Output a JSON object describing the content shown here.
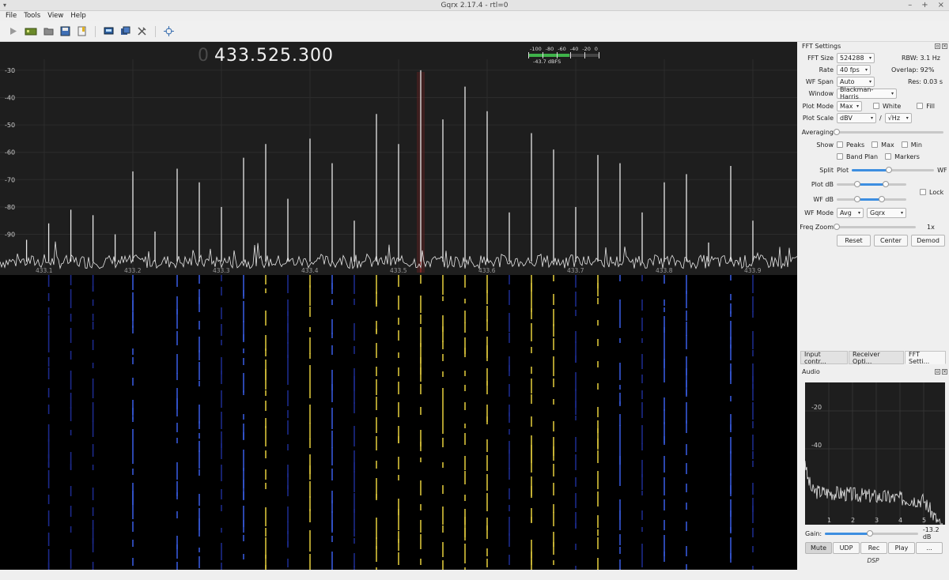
{
  "window": {
    "title": "Gqrx 2.17.4 - rtl=0",
    "controls": [
      "–",
      "+",
      "×"
    ]
  },
  "menu": [
    "File",
    "Tools",
    "View",
    "Help"
  ],
  "toolbar": {
    "buttons": [
      "play-icon",
      "device-icon",
      "open-icon",
      "save-icon",
      "bookmark-icon",
      "remote-icon",
      "dx-icon",
      "settings-icon",
      "crosshair-icon"
    ]
  },
  "frequency": {
    "leading": "0",
    "value": "433.525.300"
  },
  "signal_meter": {
    "scale": [
      "-100",
      "-80",
      "-60",
      "-40",
      "-20",
      "0"
    ],
    "level_dbfs": -43.7,
    "level_text": "-43.7 dBFS",
    "fill_fraction": 0.58,
    "color": "#3fb24a"
  },
  "chart_data": [
    {
      "type": "line",
      "name": "spectrum",
      "y_ticks": [
        "-30",
        "-40",
        "-50",
        "-60",
        "-70",
        "-80",
        "-90"
      ],
      "y_tick_values": [
        -30,
        -40,
        -50,
        -60,
        -70,
        -80,
        -90
      ],
      "x_ticks": [
        "433.1",
        "433.2",
        "433.3",
        "433.4",
        "433.5",
        "433.6",
        "433.7",
        "433.8",
        "433.9"
      ],
      "x_tick_values": [
        433.1,
        433.2,
        433.3,
        433.4,
        433.5,
        433.6,
        433.7,
        433.8,
        433.9
      ],
      "xlim": [
        433.05,
        433.95
      ],
      "ylim": [
        -104,
        -26
      ],
      "noise_floor_db": -100,
      "peaks": [
        {
          "f": 433.08,
          "db": -92
        },
        {
          "f": 433.105,
          "db": -86
        },
        {
          "f": 433.13,
          "db": -81
        },
        {
          "f": 433.155,
          "db": -83
        },
        {
          "f": 433.18,
          "db": -90
        },
        {
          "f": 433.2,
          "db": -67
        },
        {
          "f": 433.225,
          "db": -89
        },
        {
          "f": 433.25,
          "db": -66
        },
        {
          "f": 433.275,
          "db": -71
        },
        {
          "f": 433.3,
          "db": -80
        },
        {
          "f": 433.325,
          "db": -62
        },
        {
          "f": 433.35,
          "db": -57
        },
        {
          "f": 433.375,
          "db": -77
        },
        {
          "f": 433.4,
          "db": -55
        },
        {
          "f": 433.425,
          "db": -64
        },
        {
          "f": 433.45,
          "db": -85
        },
        {
          "f": 433.475,
          "db": -46
        },
        {
          "f": 433.5,
          "db": -57
        },
        {
          "f": 433.525,
          "db": -30
        },
        {
          "f": 433.55,
          "db": -48
        },
        {
          "f": 433.575,
          "db": -36
        },
        {
          "f": 433.6,
          "db": -45
        },
        {
          "f": 433.625,
          "db": -82
        },
        {
          "f": 433.65,
          "db": -53
        },
        {
          "f": 433.675,
          "db": -59
        },
        {
          "f": 433.7,
          "db": -80
        },
        {
          "f": 433.725,
          "db": -61
        },
        {
          "f": 433.75,
          "db": -64
        },
        {
          "f": 433.775,
          "db": -82
        },
        {
          "f": 433.8,
          "db": -71
        },
        {
          "f": 433.825,
          "db": -68
        },
        {
          "f": 433.85,
          "db": -93
        },
        {
          "f": 433.875,
          "db": -65
        },
        {
          "f": 433.9,
          "db": -85
        }
      ],
      "marker_freq": 433.525,
      "trace_color": "#e8e8e8"
    },
    {
      "type": "line",
      "name": "audio-fft",
      "y_ticks": [
        "-20",
        "-40"
      ],
      "y_tick_values": [
        -20,
        -40
      ],
      "x_ticks": [
        "1",
        "2",
        "3",
        "4",
        "5"
      ],
      "x_tick_values": [
        1,
        2,
        3,
        4,
        5
      ],
      "xlim": [
        0,
        5.9
      ],
      "ylim": [
        -80,
        -5
      ],
      "trace_color": "#e8e8e8"
    }
  ],
  "waterfall": {
    "line_colors": {
      "strong": "#d8c23a",
      "medium": "#3658d8",
      "weak": "#1c2a8a"
    }
  },
  "fft_settings": {
    "title": "FFT Settings",
    "fft_size_label": "FFT Size",
    "fft_size": "524288",
    "rbw": "RBW: 3.1 Hz",
    "rate_label": "Rate",
    "rate": "40 fps",
    "overlap": "Overlap: 92%",
    "wf_span_label": "WF Span",
    "wf_span": "Auto",
    "res": "Res: 0.03 s",
    "window_label": "Window",
    "window": "Blackman-Harris",
    "plot_mode_label": "Plot Mode",
    "plot_mode": "Max",
    "white": "White",
    "fill": "Fill",
    "plot_scale_label": "Plot Scale",
    "plot_scale": "dBV",
    "slash": "/",
    "plot_scale_unit": "√Hz",
    "averaging_label": "Averaging",
    "averaging": 0.0,
    "show_label": "Show",
    "peaks": "Peaks",
    "max": "Max",
    "min": "Min",
    "band_plan": "Band Plan",
    "markers": "Markers",
    "split_label": "Split",
    "split_plot": "Plot",
    "split_wf": "WF",
    "split": 0.45,
    "plot_db_label": "Plot dB",
    "plot_db_range": [
      0.3,
      0.7
    ],
    "lock": "Lock",
    "wf_db_label": "WF dB",
    "wf_db_range": [
      0.3,
      0.65
    ],
    "wf_mode_label": "WF Mode",
    "wf_mode": "Avg",
    "wf_palette": "Gqrx",
    "freq_zoom_label": "Freq Zoom",
    "freq_zoom": 0.0,
    "freq_zoom_value": "1x",
    "reset": "Reset",
    "center": "Center",
    "demod": "Demod"
  },
  "tabs": [
    "Input contr...",
    "Receiver Opti...",
    "FFT Setti..."
  ],
  "audio": {
    "title": "Audio",
    "gain_label": "Gain:",
    "gain": 0.48,
    "gain_value": "-13.2 dB",
    "buttons": [
      "Mute",
      "UDP",
      "Rec",
      "Play",
      "..."
    ],
    "dsp": "DSP"
  }
}
